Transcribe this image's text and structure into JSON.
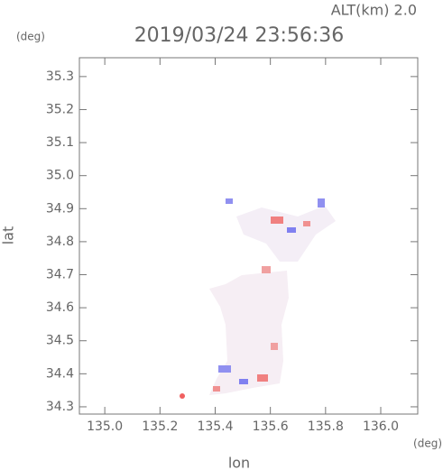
{
  "chart_data": {
    "type": "field",
    "title": "2019/03/24 23:56:36",
    "altitude_label": "ALT(km)  2.0",
    "x_label": "lon",
    "y_label": "lat",
    "x_unit": "(deg)",
    "y_unit": "(deg)",
    "xlim": [
      134.908,
      136.134
    ],
    "ylim": [
      34.278,
      35.357
    ],
    "xticks": [
      {
        "value": 135,
        "label": "135.0"
      },
      {
        "value": 135.2,
        "label": "135.2"
      },
      {
        "value": 135.4,
        "label": "135.4"
      },
      {
        "value": 135.6,
        "label": "135.6"
      },
      {
        "value": 135.8,
        "label": "135.8"
      },
      {
        "value": 136,
        "label": "136.0"
      }
    ],
    "yticks": [
      {
        "value": 34.3,
        "label": "34.3"
      },
      34.4,
      34.5,
      34.6,
      34.7,
      34.8,
      34.9,
      {
        "value": 35,
        "label": "35.0"
      },
      35.1,
      35.2,
      35.3
    ]
  }
}
